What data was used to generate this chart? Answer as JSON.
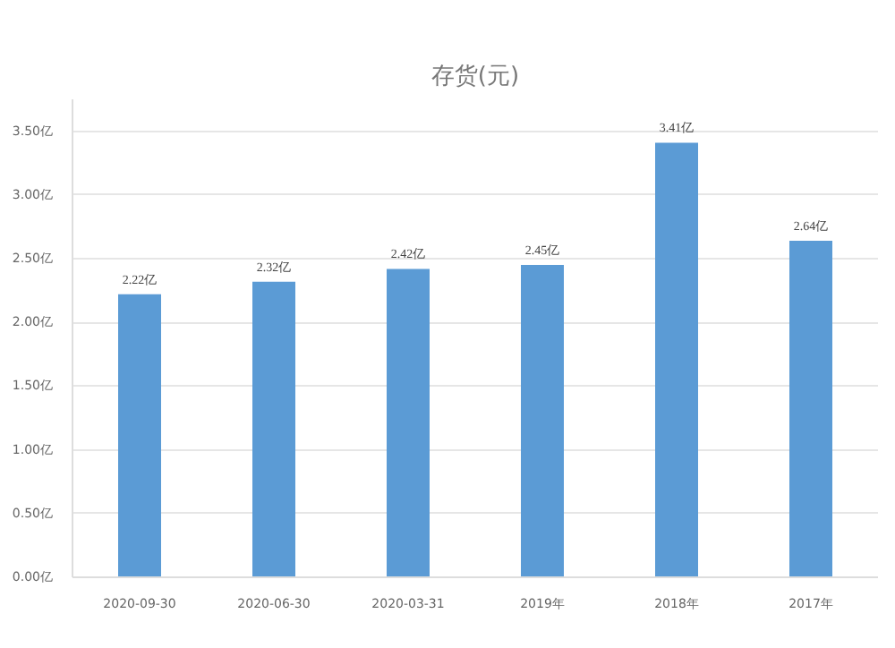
{
  "chart_data": {
    "type": "bar",
    "title": "存货(元)",
    "categories": [
      "2020-09-30",
      "2020-06-30",
      "2020-03-31",
      "2019年",
      "2018年",
      "2017年"
    ],
    "values": [
      2.22,
      2.32,
      2.42,
      2.45,
      3.41,
      2.64
    ],
    "value_labels": [
      "2.22亿",
      "2.32亿",
      "2.42亿",
      "2.45亿",
      "3.41亿",
      "2.64亿"
    ],
    "color": "#5b9bd5",
    "ylim": [
      0,
      3.75
    ],
    "yticks": [
      {
        "value": 0,
        "label": "0.00亿"
      },
      {
        "value": 0.5,
        "label": "0.50亿"
      },
      {
        "value": 1,
        "label": "1.00亿"
      },
      {
        "value": 1.5,
        "label": "1.50亿"
      },
      {
        "value": 2,
        "label": "2.00亿"
      },
      {
        "value": 2.5,
        "label": "2.50亿"
      },
      {
        "value": 3,
        "label": "3.00亿"
      },
      {
        "value": 3.5,
        "label": "3.50亿"
      }
    ],
    "grid": "y"
  }
}
